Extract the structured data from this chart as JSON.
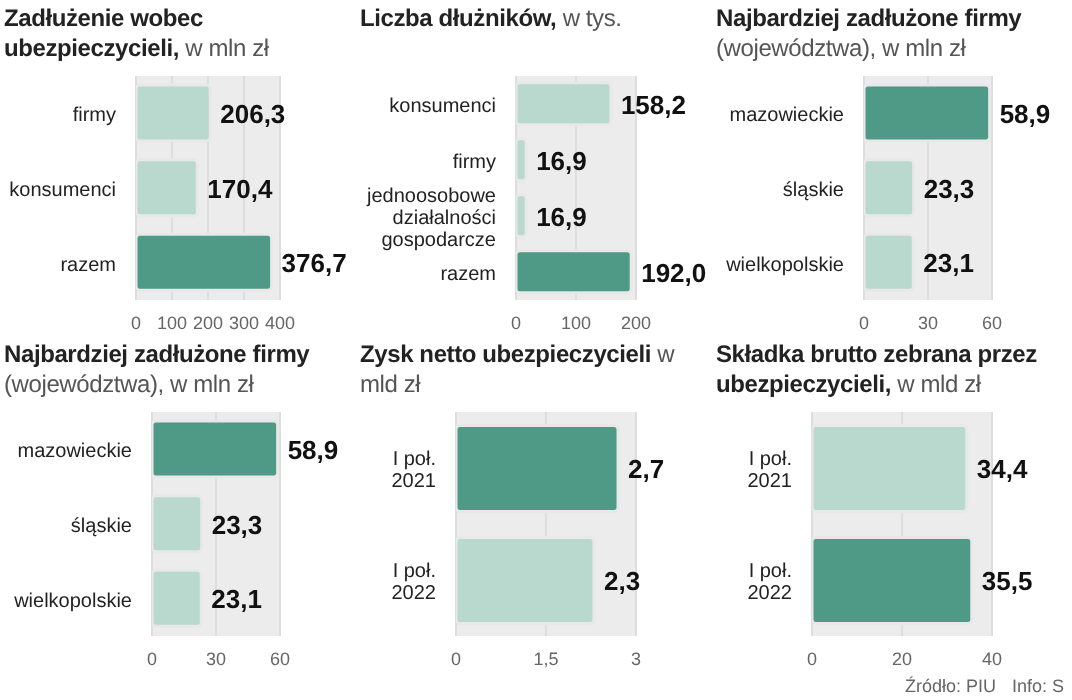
{
  "chart_data": [
    {
      "type": "bar",
      "orientation": "horizontal",
      "title": "Zadłużenie wobec ubezpieczycieli,",
      "subtitle": "w mln zł",
      "categories": [
        "firmy",
        "konsumenci",
        "razem"
      ],
      "values": [
        206.3,
        170.4,
        376.7
      ],
      "value_labels": [
        "206,3",
        "170,4",
        "376,7"
      ],
      "colors": [
        "#b9d9ce",
        "#b9d9ce",
        "#4e9a87"
      ],
      "xlim": [
        0,
        400
      ],
      "xticks": [
        0,
        100,
        200,
        300,
        400
      ],
      "grid": "x"
    },
    {
      "type": "bar",
      "orientation": "horizontal",
      "title": "Liczba dłużników,",
      "subtitle": "w tys.",
      "categories": [
        "konsumenci",
        "firmy",
        "jednoosobowe\ndziałalności\ngospodarcze",
        "razem"
      ],
      "values": [
        158.2,
        16.9,
        16.9,
        192.0
      ],
      "value_labels": [
        "158,2",
        "16,9",
        "16,9",
        "192,0"
      ],
      "colors": [
        "#b9d9ce",
        "#b9d9ce",
        "#b9d9ce",
        "#4e9a87"
      ],
      "xlim": [
        0,
        200
      ],
      "xticks": [
        0,
        100,
        200
      ],
      "grid": "x"
    },
    {
      "type": "bar",
      "orientation": "horizontal",
      "title": "Najbardziej zadłużone firmy",
      "subtitle": "(województwa), w mln zł",
      "categories": [
        "mazowieckie",
        "śląskie",
        "wielkopolskie"
      ],
      "values": [
        58.9,
        23.3,
        23.1
      ],
      "value_labels": [
        "58,9",
        "23,3",
        "23,1"
      ],
      "colors": [
        "#4e9a87",
        "#b9d9ce",
        "#b9d9ce"
      ],
      "xlim": [
        0,
        60
      ],
      "xticks": [
        0,
        30,
        60
      ],
      "grid": "x"
    },
    {
      "type": "bar",
      "orientation": "horizontal",
      "title": "Najbardziej zadłużone firmy",
      "subtitle": "(województwa), w mln zł",
      "categories": [
        "mazowieckie",
        "śląskie",
        "wielkopolskie"
      ],
      "values": [
        58.9,
        23.3,
        23.1
      ],
      "value_labels": [
        "58,9",
        "23,3",
        "23,1"
      ],
      "colors": [
        "#4e9a87",
        "#b9d9ce",
        "#b9d9ce"
      ],
      "xlim": [
        0,
        60
      ],
      "xticks": [
        0,
        30,
        60
      ],
      "grid": "x"
    },
    {
      "type": "bar",
      "orientation": "horizontal",
      "title": "Zysk netto ubezpieczycieli",
      "subtitle": "w mld zł",
      "categories": [
        "I poł.\n2021",
        "I poł.\n2022"
      ],
      "values": [
        2.7,
        2.3
      ],
      "value_labels": [
        "2,7",
        "2,3"
      ],
      "colors": [
        "#4e9a87",
        "#b9d9ce"
      ],
      "xlim": [
        0,
        3
      ],
      "xticks": [
        0,
        {
          "value": 1.5,
          "label": "1,5"
        },
        3
      ],
      "grid": "x"
    },
    {
      "type": "bar",
      "orientation": "horizontal",
      "title": "Składka brutto zebrana przez ubezpieczycieli,",
      "subtitle": "w mld zł",
      "categories": [
        "I poł.\n2021",
        "I poł.\n2022"
      ],
      "values": [
        34.4,
        35.5
      ],
      "value_labels": [
        "34,4",
        "35,5"
      ],
      "colors": [
        "#b9d9ce",
        "#4e9a87"
      ],
      "xlim": [
        0,
        40
      ],
      "xticks": [
        0,
        20,
        40
      ],
      "grid": "x",
      "annotations": [
        "Źródło: PIU",
        "Info: S"
      ]
    }
  ]
}
